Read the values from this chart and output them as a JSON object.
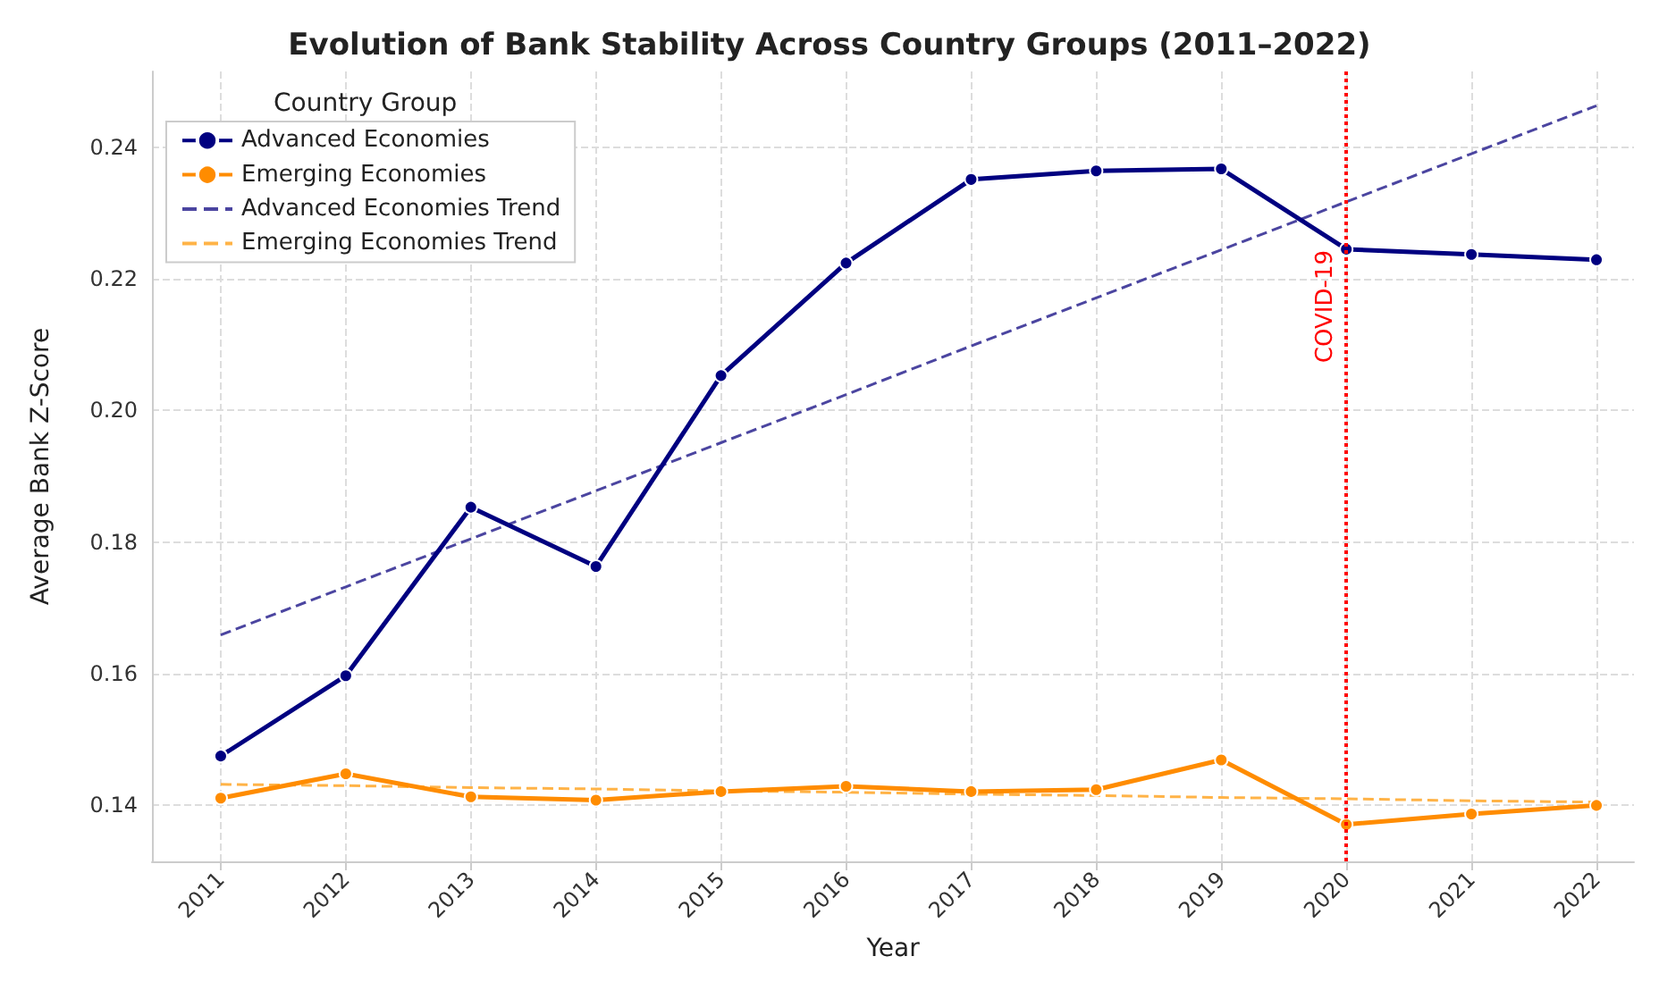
{
  "chart_data": {
    "type": "line",
    "title": "Evolution of Bank Stability Across Country Groups (2011–2022)",
    "xlabel": "Year",
    "ylabel": "Average Bank Z-Score",
    "legend_title": "Country Group",
    "x": [
      2011,
      2012,
      2013,
      2014,
      2015,
      2016,
      2017,
      2018,
      2019,
      2020,
      2021,
      2022
    ],
    "series": [
      {
        "name": "Advanced Economies",
        "color": "#000080",
        "marker": "circle",
        "line_style": "solid",
        "values": [
          0.1475,
          0.1597,
          0.1853,
          0.1763,
          0.2053,
          0.2224,
          0.2351,
          0.2364,
          0.2367,
          0.2245,
          0.2237,
          0.2229
        ]
      },
      {
        "name": "Emerging Economies",
        "color": "#ff8c00",
        "marker": "circle",
        "line_style": "solid",
        "values": [
          0.1411,
          0.1448,
          0.1413,
          0.1408,
          0.1421,
          0.1429,
          0.1421,
          0.1424,
          0.1469,
          0.1371,
          0.1387,
          0.14
        ]
      },
      {
        "name": "Advanced Economies Trend",
        "color": "#4b45a0",
        "marker": "none",
        "line_style": "dashed",
        "values": [
          0.1659,
          0.1732,
          0.1805,
          0.1878,
          0.1951,
          0.2024,
          0.2098,
          0.2171,
          0.2244,
          0.2317,
          0.239,
          0.2463
        ]
      },
      {
        "name": "Emerging Economies Trend",
        "color": "#ffb347",
        "marker": "none",
        "line_style": "dashed",
        "values": [
          0.1432,
          0.143,
          0.1427,
          0.1425,
          0.1422,
          0.142,
          0.1417,
          0.1415,
          0.1412,
          0.141,
          0.1407,
          0.1405
        ]
      }
    ],
    "xlim": [
      2010.45,
      2022.3
    ],
    "xticks": [
      2011,
      2012,
      2013,
      2014,
      2015,
      2016,
      2017,
      2018,
      2019,
      2020,
      2021,
      2022
    ],
    "ylim": [
      0.1315,
      0.2515
    ],
    "yticks": [
      0.14,
      0.16,
      0.18,
      {
        "value": 0.2,
        "label": "0.20"
      },
      0.22,
      0.24
    ],
    "ref_lines": [
      {
        "axis": "x",
        "value": 2020,
        "label": "COVID-19",
        "color": "#ff0000",
        "line_style": "dotted"
      }
    ],
    "grid": true,
    "legend": "top left"
  }
}
